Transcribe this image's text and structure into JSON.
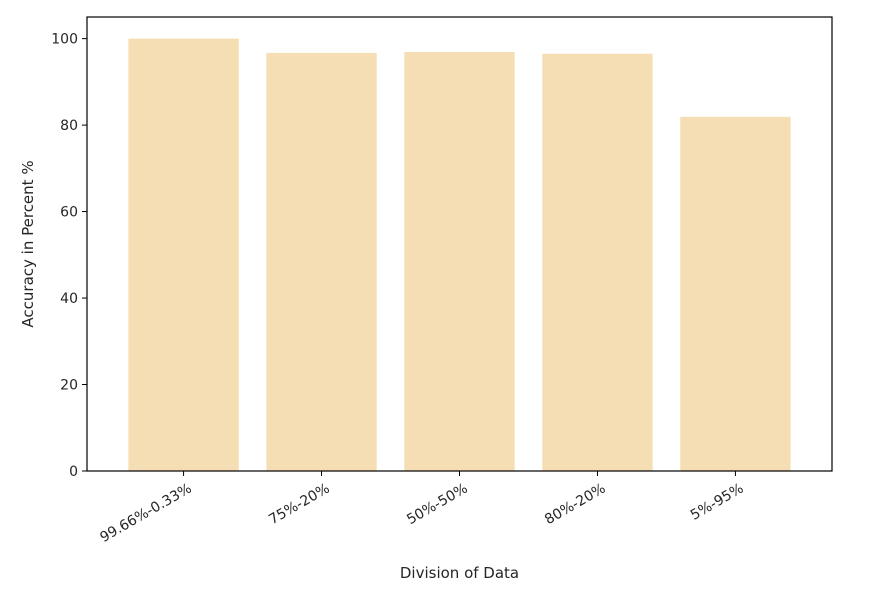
{
  "chart_data": {
    "type": "bar",
    "title": "",
    "xlabel": "Division of Data",
    "ylabel": "Accuracy in Percent %",
    "categories": [
      "99.66%-0.33%",
      "75%-20%",
      "50%-50%",
      "80%-20%",
      "5%-95%"
    ],
    "values": [
      100.0,
      96.7,
      96.9,
      96.5,
      81.9
    ],
    "ylim": [
      0,
      105
    ],
    "yticks": [
      0,
      20,
      40,
      60,
      80,
      100
    ],
    "bar_color": "#f5deb3",
    "grid": false,
    "legend": "none"
  }
}
